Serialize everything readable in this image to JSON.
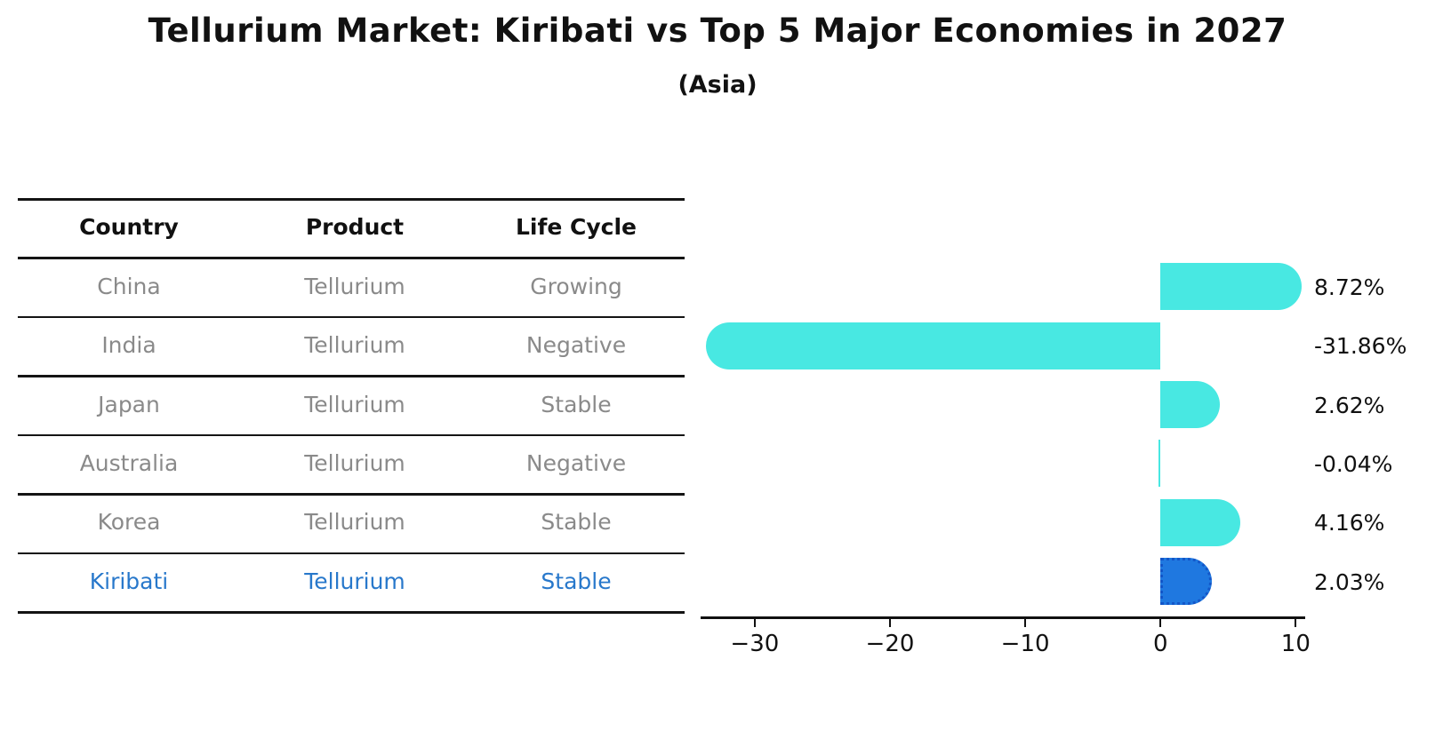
{
  "title": "Tellurium Market: Kiribati vs Top 5 Major Economies in 2027",
  "subtitle": "(Asia)",
  "table": {
    "columns": [
      "Country",
      "Product",
      "Life Cycle"
    ],
    "rows": [
      [
        "China",
        "Tellurium",
        "Growing"
      ],
      [
        "India",
        "Tellurium",
        "Negative"
      ],
      [
        "Japan",
        "Tellurium",
        "Stable"
      ],
      [
        "Australia",
        "Tellurium",
        "Negative"
      ],
      [
        "Korea",
        "Tellurium",
        "Stable"
      ],
      [
        "Kiribati",
        "Tellurium",
        "Stable"
      ]
    ],
    "highlight_row_index": 5,
    "text_color": "#8a8a8a",
    "header_color": "#111111",
    "highlight_text_color": "#2878CB"
  },
  "chart_data": {
    "type": "bar",
    "orientation": "horizontal",
    "title": "Tellurium Market: Kiribati vs Top 5 Major Economies in 2027",
    "subtitle": "(Asia)",
    "categories": [
      "China",
      "India",
      "Japan",
      "Australia",
      "Korea",
      "Kiribati"
    ],
    "values": [
      8.72,
      -31.86,
      2.62,
      -0.04,
      4.16,
      2.03
    ],
    "value_labels": [
      "8.72%",
      "-31.86%",
      "2.62%",
      "-0.04%",
      "4.16%",
      "2.03%"
    ],
    "xlim": [
      -34,
      10.7
    ],
    "xticks": [
      -30,
      -20,
      -10,
      0,
      10
    ],
    "xtick_labels": [
      "−30",
      "−20",
      "−10",
      "0",
      "10"
    ],
    "grid": false,
    "legend": false,
    "bar_color": "#48E8E2",
    "highlight_index": 5,
    "highlight_bar_color": "#1F78E0",
    "highlight_border_color": "#1356C8",
    "value_label_color": "#111111"
  }
}
